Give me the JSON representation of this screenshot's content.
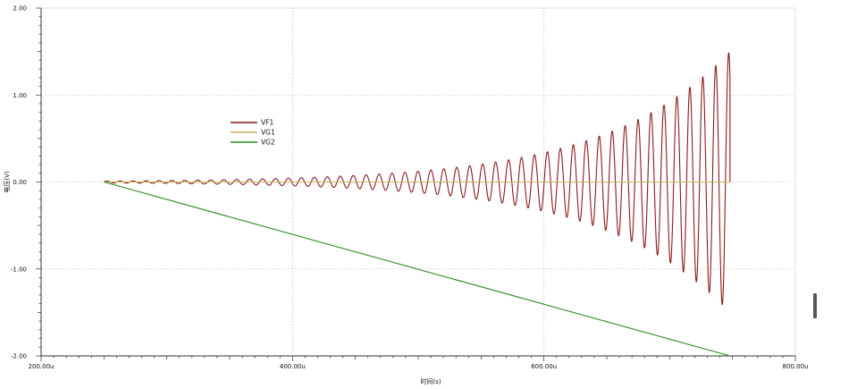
{
  "chart_data": {
    "type": "line",
    "title": "",
    "xlabel": "时间(s)",
    "ylabel": "电压(V)",
    "xlim": [
      200,
      800
    ],
    "ylim": [
      -2,
      2
    ],
    "x_ticks": [
      {
        "value": 200,
        "label": "200.00u"
      },
      {
        "value": 400,
        "label": "400.00u"
      },
      {
        "value": 600,
        "label": "600.00u"
      },
      {
        "value": 800,
        "label": "800.00u"
      }
    ],
    "y_ticks": [
      {
        "value": 2,
        "label": "2.00"
      },
      {
        "value": 1,
        "label": "1.00"
      },
      {
        "value": 0,
        "label": "0.00"
      },
      {
        "value": -1,
        "label": "-1.00"
      },
      {
        "value": -2,
        "label": "-2.00"
      }
    ],
    "grid": true,
    "legend_position": "upper-left",
    "series": [
      {
        "name": "VF1",
        "color": "#8b1a1a",
        "description_type": "growing_oscillation",
        "x_start": 250,
        "x_end": 748,
        "amplitude_start": 0.01,
        "amplitude_end": 1.5,
        "period": 10.3
      },
      {
        "name": "VG1",
        "color": "#c8b45a",
        "values": {
          "x": [
            250,
            748
          ],
          "y": [
            0,
            0
          ]
        }
      },
      {
        "name": "VG2",
        "color": "#2e8b22",
        "values": {
          "x": [
            250,
            748
          ],
          "y": [
            0,
            -2
          ]
        }
      }
    ]
  },
  "window": {
    "right_handle_icon": "scroll-handle-icon"
  }
}
